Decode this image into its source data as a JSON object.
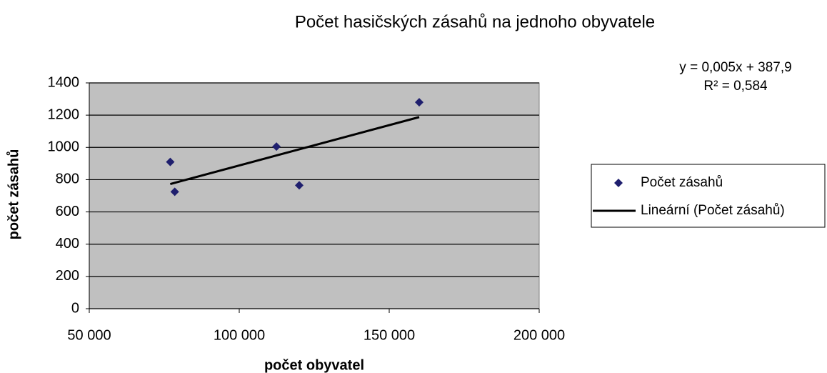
{
  "chart_data": {
    "type": "scatter",
    "title": "Počet hasičských zásahů na jednoho obyvatele",
    "xlabel": "počet obyvatel",
    "ylabel": "počet zásahů",
    "annotations": [
      "y = 0,005x + 387,9",
      "R² = 0,584"
    ],
    "series": [
      {
        "name": "Počet zásahů",
        "color": "#1f1f6e",
        "style": "markers",
        "x": [
          77000,
          78500,
          112400,
          120000,
          160000
        ],
        "values": [
          910,
          725,
          1005,
          765,
          1280
        ]
      },
      {
        "name": "Lineární (Počet zásahů)",
        "color": "#000000",
        "style": "line",
        "x": [
          77000,
          160000
        ],
        "values": [
          772.9,
          1187.9
        ]
      }
    ],
    "xlim": [
      50000,
      200000
    ],
    "xticks": [
      {
        "value": 50000,
        "label": "50 000"
      },
      {
        "value": 100000,
        "label": "100 000"
      },
      {
        "value": 150000,
        "label": "150 000"
      },
      {
        "value": 200000,
        "label": "200 000"
      }
    ],
    "ylim": [
      0,
      1400
    ],
    "yticks": [
      0,
      200,
      400,
      600,
      800,
      1000,
      1200,
      1400
    ],
    "grid": true,
    "legend": "right"
  }
}
